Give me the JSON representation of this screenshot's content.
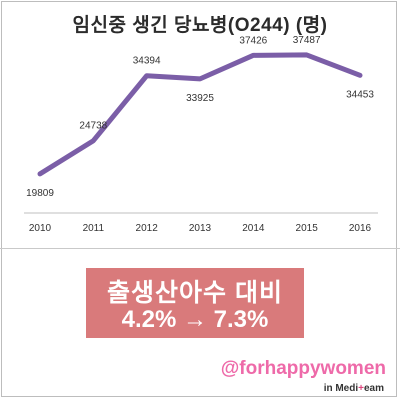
{
  "title": "임신중 생긴 당뇨병(O244) (명)",
  "chart_data": {
    "type": "line",
    "categories": [
      "2010",
      "2011",
      "2012",
      "2013",
      "2014",
      "2015",
      "2016"
    ],
    "series": [
      {
        "values": [
          19809,
          24738,
          34394,
          33925,
          37426,
          37487,
          34453
        ]
      }
    ],
    "data_labels": [
      "19809",
      "24738",
      "34394",
      "33925",
      "37426",
      "37487",
      "34453"
    ],
    "ylim": [
      14000,
      40000
    ],
    "grid": false,
    "line_color": "#7b5ea7"
  },
  "banner": {
    "line1": "출생산아수 대비",
    "line2": "4.2% → 7.3%",
    "color": "#d97a7b"
  },
  "watermark": {
    "handle": "@forhappywomen",
    "brand_prefix": "in Medi",
    "brand_plus": "+",
    "brand_suffix": "eam"
  }
}
